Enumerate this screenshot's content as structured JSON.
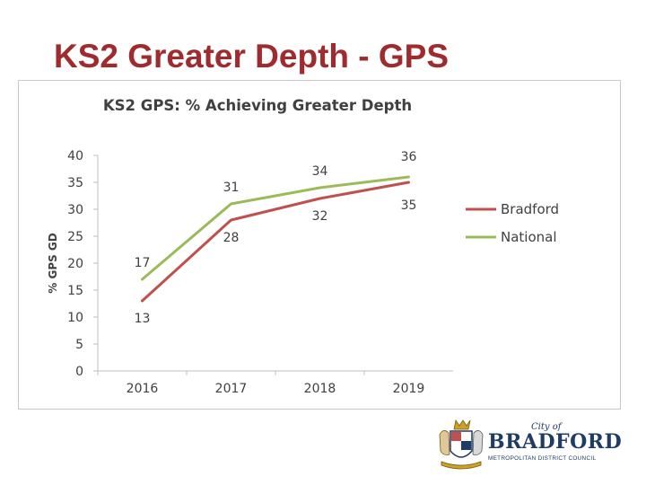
{
  "slide": {
    "title": "KS2 Greater Depth - GPS"
  },
  "logo": {
    "city_of": "City of",
    "name": "BRADFORD",
    "subtitle": "METROPOLITAN DISTRICT COUNCIL"
  },
  "colors": {
    "title": "#a02b2f",
    "bradford": "#c0504d",
    "national": "#9bbb59",
    "axis": "#bfbfbf",
    "text": "#404040"
  },
  "chart_data": {
    "type": "line",
    "title": "KS2 GPS: % Achieving Greater Depth",
    "xlabel": "",
    "ylabel": "% GPS GD",
    "categories": [
      "2016",
      "2017",
      "2018",
      "2019"
    ],
    "yticks": [
      "0",
      "5",
      "10",
      "15",
      "20",
      "25",
      "30",
      "35",
      "40"
    ],
    "ylim": [
      0,
      40
    ],
    "grid": false,
    "legend_position": "right",
    "series": [
      {
        "name": "Bradford",
        "values": [
          13,
          28,
          32,
          35
        ],
        "labels": [
          "13",
          "28",
          "32",
          "35"
        ],
        "color": "#c0504d"
      },
      {
        "name": "National",
        "values": [
          17,
          31,
          34,
          36
        ],
        "labels": [
          "17",
          "31",
          "34",
          "36"
        ],
        "color": "#9bbb59"
      }
    ]
  }
}
